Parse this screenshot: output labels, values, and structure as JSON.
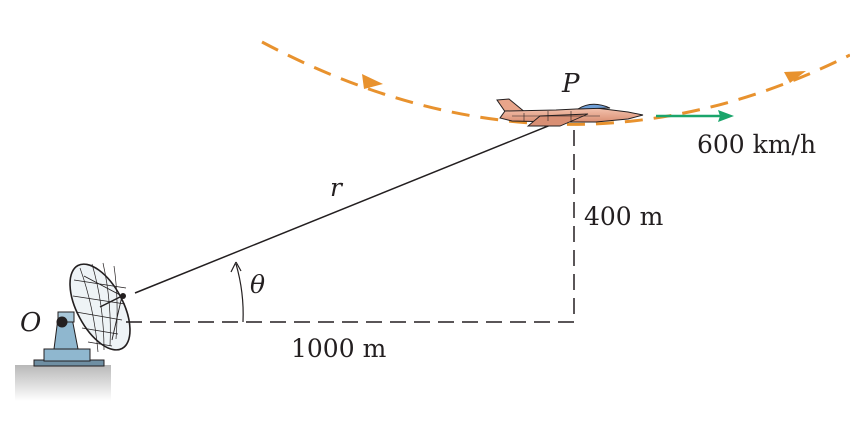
{
  "labels": {
    "origin": "O",
    "point": "P",
    "radius": "r",
    "angle": "θ",
    "horizontal_distance": "1000 m",
    "altitude": "400 m",
    "speed": "600 km/h"
  },
  "colors": {
    "ink": "#231f20",
    "flight_path": "#e8922e",
    "velocity_arrow": "#1aa56b",
    "aircraft_body": "#e8a58a",
    "canopy": "#6f9fd6",
    "radar_base": "#8fb7cf",
    "ground": "#bdbdbd"
  },
  "icons": {
    "aircraft": "jet-aircraft-icon",
    "radar": "radar-dish-icon"
  }
}
